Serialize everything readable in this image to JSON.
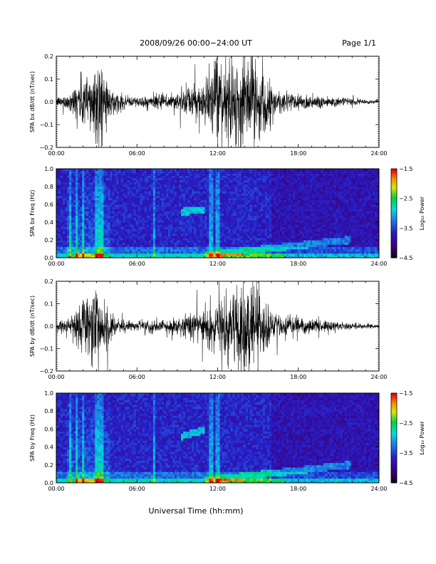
{
  "header": {
    "title": "2008/09/26  00:00−24:00 UT",
    "page": "Page 1/1"
  },
  "chart_data": [
    {
      "type": "line",
      "panel": "bx_timeseries",
      "ylabel": "SPA bx dB/dt (nT/sec)",
      "ylim": [
        -0.2,
        0.2
      ],
      "xlim": [
        0,
        24
      ],
      "y_ticks": [
        "0.2",
        "0.1",
        "0.0",
        "−0.1",
        "−0.2"
      ],
      "x_ticks": [
        "00:00",
        "06:00",
        "12:00",
        "18:00",
        "24:00"
      ],
      "envelope": {
        "x": [
          0,
          1,
          1.5,
          2,
          2.5,
          3,
          3.3,
          3.7,
          4,
          5,
          6,
          7,
          8,
          9,
          10,
          11,
          12,
          13,
          14,
          14.5,
          15,
          15.5,
          16,
          17,
          18,
          19,
          20,
          21,
          22,
          23,
          24
        ],
        "y": [
          0.02,
          0.04,
          0.1,
          0.13,
          0.16,
          0.2,
          0.2,
          0.12,
          0.06,
          0.03,
          0.025,
          0.03,
          0.035,
          0.05,
          0.07,
          0.1,
          0.18,
          0.2,
          0.2,
          0.2,
          0.2,
          0.14,
          0.08,
          0.05,
          0.04,
          0.035,
          0.03,
          0.02,
          0.015,
          0.01,
          0.008
        ]
      }
    },
    {
      "type": "heatmap",
      "panel": "bx_spectrogram",
      "ylabel": "SPA bx Freq (Hz)",
      "ylim": [
        0.0,
        1.0
      ],
      "xlim": [
        0,
        24
      ],
      "y_ticks": [
        "1.0",
        "0.8",
        "0.6",
        "0.4",
        "0.2",
        "0.0"
      ],
      "x_ticks": [
        "00:00",
        "06:00",
        "12:00",
        "18:00",
        "24:00"
      ],
      "colorbar": {
        "label": "Log₁₀ Power",
        "range": [
          -4.5,
          -1.5
        ],
        "ticks": [
          "−1.5",
          "−2.5",
          "−3.5",
          "−4.5"
        ]
      }
    },
    {
      "type": "line",
      "panel": "by_timeseries",
      "ylabel": "SPA by dB/dt (nT/sec)",
      "ylim": [
        -0.2,
        0.2
      ],
      "xlim": [
        0,
        24
      ],
      "y_ticks": [
        "0.2",
        "0.1",
        "0.0",
        "−0.1",
        "−0.2"
      ],
      "x_ticks": [
        "00:00",
        "06:00",
        "12:00",
        "18:00",
        "24:00"
      ],
      "envelope": {
        "x": [
          0,
          1,
          1.5,
          2,
          2.5,
          3,
          3.3,
          3.7,
          4,
          5,
          6,
          7,
          8,
          9,
          10,
          11,
          12,
          13,
          14,
          14.5,
          15,
          15.5,
          16,
          17,
          18,
          19,
          20,
          21,
          22,
          23,
          24
        ],
        "y": [
          0.02,
          0.04,
          0.09,
          0.13,
          0.16,
          0.2,
          0.2,
          0.13,
          0.06,
          0.03,
          0.025,
          0.03,
          0.03,
          0.04,
          0.06,
          0.09,
          0.15,
          0.18,
          0.2,
          0.2,
          0.2,
          0.14,
          0.07,
          0.05,
          0.04,
          0.03,
          0.03,
          0.02,
          0.015,
          0.012,
          0.01
        ]
      }
    },
    {
      "type": "heatmap",
      "panel": "by_spectrogram",
      "ylabel": "SPA by Freq (Hz)",
      "ylim": [
        0.0,
        1.0
      ],
      "xlim": [
        0,
        24
      ],
      "y_ticks": [
        "1.0",
        "0.8",
        "0.6",
        "0.4",
        "0.2",
        "0.0"
      ],
      "x_ticks": [
        "00:00",
        "06:00",
        "12:00",
        "18:00",
        "24:00"
      ],
      "colorbar": {
        "label": "Log₁₀ Power",
        "range": [
          -4.5,
          -1.5
        ],
        "ticks": [
          "−1.5",
          "−2.5",
          "−3.5",
          "−4.5"
        ]
      }
    }
  ],
  "footer": {
    "xlabel": "Universal Time (hh:mm)"
  }
}
